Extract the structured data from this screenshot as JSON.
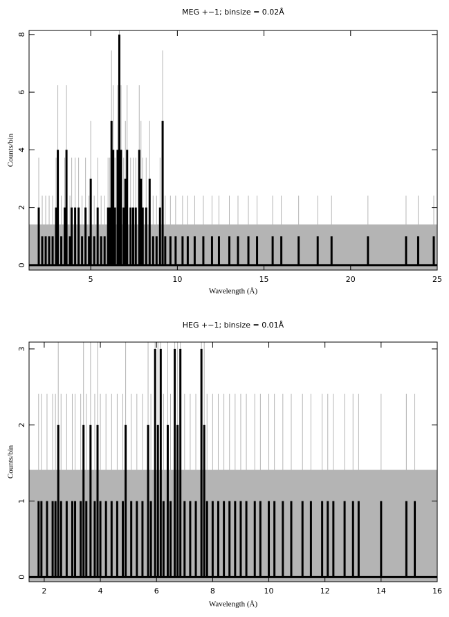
{
  "chart_data": [
    {
      "type": "spectrum",
      "title": "MEG +−1; binsize = 0.02Å",
      "xlabel": "Wavelength (Å)",
      "ylabel": "Counts/bin",
      "xlim": [
        1.44,
        25
      ],
      "ylim": [
        -0.17,
        8.14
      ],
      "xticks": [
        5,
        10,
        15,
        20,
        25
      ],
      "yticks": [
        0,
        2,
        4,
        6,
        8
      ],
      "color": "#000000",
      "error_color": "#b4b4b4",
      "error_band": 1.41,
      "x": [
        2.0,
        2.2,
        2.4,
        2.6,
        2.8,
        3.0,
        3.1,
        3.3,
        3.5,
        3.6,
        3.8,
        3.9,
        4.1,
        4.3,
        4.5,
        4.7,
        4.9,
        5.0,
        5.2,
        5.4,
        5.6,
        5.8,
        6.0,
        6.1,
        6.2,
        6.3,
        6.4,
        6.55,
        6.65,
        6.75,
        6.9,
        7.0,
        7.1,
        7.3,
        7.45,
        7.6,
        7.8,
        7.9,
        8.0,
        8.2,
        8.4,
        8.6,
        8.8,
        9.0,
        9.15,
        9.3,
        9.6,
        9.9,
        10.3,
        10.6,
        11.0,
        11.5,
        12.0,
        12.4,
        13.0,
        13.5,
        14.1,
        14.6,
        15.5,
        16.0,
        17.0,
        18.1,
        18.9,
        21.0,
        23.2,
        23.9,
        24.8
      ],
      "values": [
        2,
        1,
        1,
        1,
        1,
        2,
        4,
        1,
        2,
        4,
        1,
        2,
        2,
        2,
        1,
        2,
        1,
        3,
        1,
        2,
        1,
        1,
        2,
        2,
        5,
        4,
        2,
        4,
        8,
        4,
        2,
        3,
        4,
        2,
        2,
        2,
        4,
        3,
        2,
        2,
        3,
        1,
        1,
        2,
        5,
        1,
        1,
        1,
        1,
        1,
        1,
        1,
        1,
        1,
        1,
        1,
        1,
        1,
        1,
        1,
        1,
        1,
        1,
        1,
        1,
        1,
        1
      ],
      "errors": [
        1.73,
        1.41,
        1.41,
        1.41,
        1.41,
        1.73,
        2.24,
        1.41,
        1.73,
        2.24,
        1.41,
        1.73,
        1.73,
        1.73,
        1.41,
        1.73,
        1.41,
        2,
        1.41,
        1.73,
        1.41,
        1.41,
        1.73,
        1.73,
        2.45,
        2.24,
        1.73,
        2.24,
        3,
        2.24,
        1.73,
        2,
        2.24,
        1.73,
        1.73,
        1.73,
        2.24,
        2,
        1.73,
        1.73,
        2,
        1.41,
        1.41,
        1.73,
        2.45,
        1.41,
        1.41,
        1.41,
        1.41,
        1.41,
        1.41,
        1.41,
        1.41,
        1.41,
        1.41,
        1.41,
        1.41,
        1.41,
        1.41,
        1.41,
        1.41,
        1.41,
        1.41,
        1.41,
        1.41,
        1.41,
        1.41
      ]
    },
    {
      "type": "spectrum",
      "title": "HEG +−1; binsize = 0.01Å",
      "xlabel": "Wavelength (Å)",
      "ylabel": "Counts/bin",
      "xlim": [
        1.46,
        16
      ],
      "ylim": [
        -0.06,
        3.09
      ],
      "xticks": [
        2,
        4,
        6,
        8,
        10,
        12,
        14,
        16
      ],
      "yticks": [
        0,
        1,
        2,
        3
      ],
      "color": "#000000",
      "error_color": "#b4b4b4",
      "error_band": 1.41,
      "x": [
        1.8,
        1.9,
        2.1,
        2.3,
        2.4,
        2.5,
        2.6,
        2.8,
        3.0,
        3.1,
        3.3,
        3.4,
        3.5,
        3.65,
        3.8,
        3.9,
        4.0,
        4.2,
        4.4,
        4.6,
        4.8,
        4.9,
        5.1,
        5.3,
        5.5,
        5.7,
        5.8,
        5.95,
        6.05,
        6.15,
        6.25,
        6.4,
        6.5,
        6.65,
        6.75,
        6.85,
        7.0,
        7.2,
        7.4,
        7.6,
        7.7,
        7.8,
        8.0,
        8.2,
        8.4,
        8.6,
        8.8,
        9.0,
        9.2,
        9.5,
        9.7,
        10.0,
        10.2,
        10.5,
        10.8,
        11.2,
        11.5,
        11.9,
        12.1,
        12.3,
        12.7,
        13.0,
        13.2,
        14.0,
        14.9,
        15.2
      ],
      "values": [
        1,
        1,
        1,
        1,
        1,
        2,
        1,
        1,
        1,
        1,
        1,
        2,
        1,
        2,
        1,
        2,
        1,
        1,
        1,
        1,
        1,
        2,
        1,
        1,
        1,
        2,
        1,
        3,
        2,
        3,
        1,
        2,
        1,
        3,
        2,
        3,
        1,
        1,
        1,
        3,
        2,
        1,
        1,
        1,
        1,
        1,
        1,
        1,
        1,
        1,
        1,
        1,
        1,
        1,
        1,
        1,
        1,
        1,
        1,
        1,
        1,
        1,
        1,
        1,
        1,
        1
      ],
      "errors": [
        1.41,
        1.41,
        1.41,
        1.41,
        1.41,
        1.73,
        1.41,
        1.41,
        1.41,
        1.41,
        1.41,
        1.73,
        1.41,
        1.73,
        1.41,
        1.73,
        1.41,
        1.41,
        1.41,
        1.41,
        1.41,
        1.73,
        1.41,
        1.41,
        1.41,
        1.73,
        1.41,
        2,
        1.73,
        2,
        1.41,
        1.73,
        1.41,
        2,
        1.73,
        2,
        1.41,
        1.41,
        1.41,
        2,
        1.73,
        1.41,
        1.41,
        1.41,
        1.41,
        1.41,
        1.41,
        1.41,
        1.41,
        1.41,
        1.41,
        1.41,
        1.41,
        1.41,
        1.41,
        1.41,
        1.41,
        1.41,
        1.41,
        1.41,
        1.41,
        1.41,
        1.41,
        1.41,
        1.41,
        1.41
      ]
    }
  ]
}
